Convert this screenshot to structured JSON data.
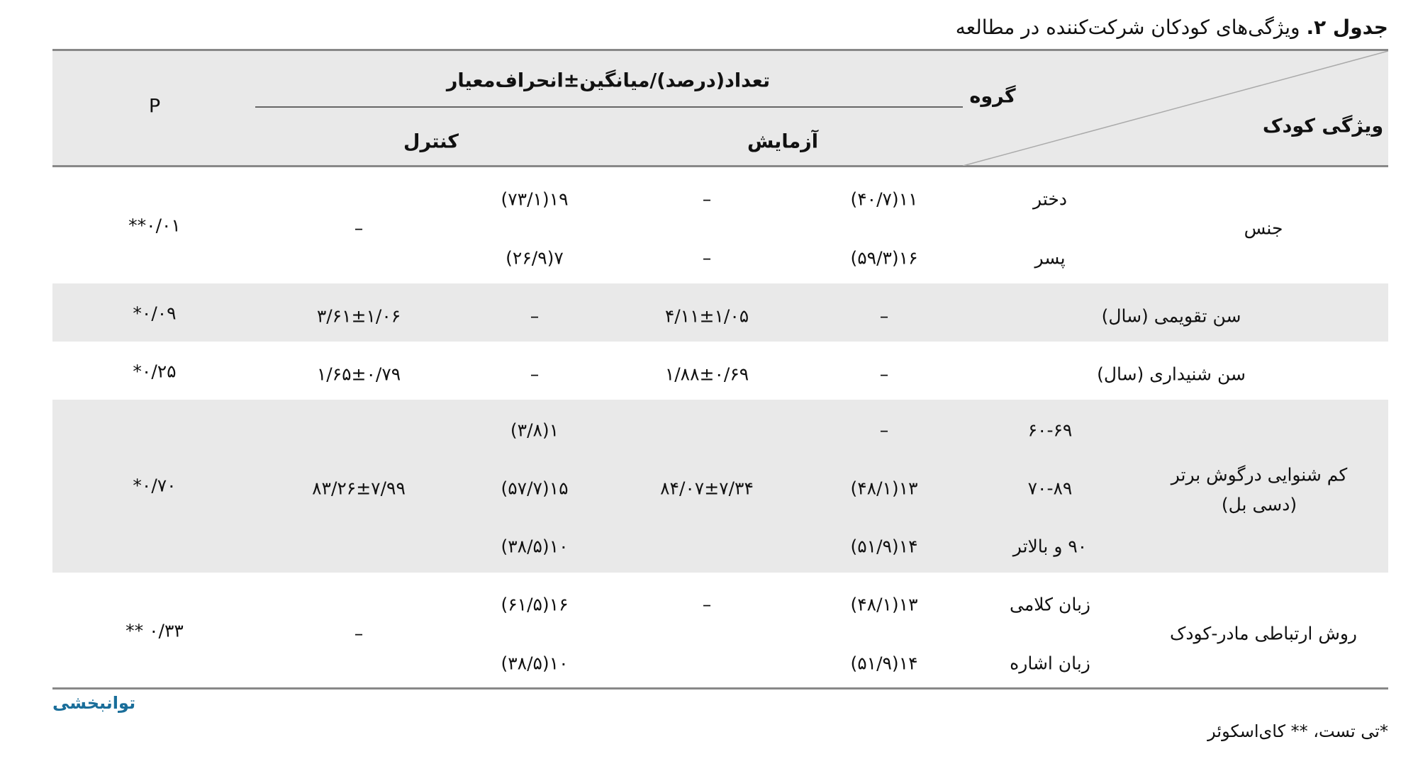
{
  "title": {
    "label": "جدول ۲.",
    "text": "ویژگی‌های کودکان شرکت‌کننده در مطالعه"
  },
  "header": {
    "child_feature": "ویژگی کودک",
    "group": "گروه",
    "stat": "تعداد(درصد)/میانگین±انحراف‌معیار",
    "experiment": "آزمایش",
    "control": "کنترل",
    "p": "P"
  },
  "rows": [
    {
      "category": "جنس",
      "p": "۰/۰۱**",
      "exp_mean": "–",
      "ctrl_mean": "–",
      "sub": [
        {
          "label": "دختر",
          "exp_n": "۱۱(۴۰/۷)",
          "exp_dash": "–",
          "ctrl_n": "۱۹(۷۳/۱)"
        },
        {
          "label": "پسر",
          "exp_n": "۱۶(۵۹/۳)",
          "exp_dash": "–",
          "ctrl_n": "۷(۲۶/۹)"
        }
      ]
    },
    {
      "category": "سن تقویمی (سال)",
      "p": "۰/۰۹*",
      "exp_n": "–",
      "exp_mean": "۴/۱۱±۱/۰۵",
      "ctrl_n": "–",
      "ctrl_mean": "۳/۶۱±۱/۰۶"
    },
    {
      "category": "سن شنیداری (سال)",
      "p": "۰/۲۵*",
      "exp_n": "–",
      "exp_mean": "۱/۸۸±۰/۶۹",
      "ctrl_n": "–",
      "ctrl_mean": "۱/۶۵±۰/۷۹"
    },
    {
      "category": "کم شنوایی درگوش برتر",
      "category2": "(دسی بل)",
      "p": "۰/۷۰*",
      "exp_mean": "۸۴/۰۷±۷/۳۴",
      "ctrl_mean": "۸۳/۲۶±۷/۹۹",
      "sub": [
        {
          "label": "۶۰-۶۹",
          "exp_n": "–",
          "ctrl_n": "۱(۳/۸)"
        },
        {
          "label": "۷۰-۸۹",
          "exp_n": "۱۳(۴۸/۱)",
          "ctrl_n": "۱۵(۵۷/۷)"
        },
        {
          "label": "۹۰ و بالاتر",
          "exp_n": "۱۴(۵۱/۹)",
          "ctrl_n": "۱۰(۳۸/۵)"
        }
      ]
    },
    {
      "category": "روش ارتباطی مادر-کودک",
      "p": "۰/۳۳ **",
      "exp_mean": "–",
      "ctrl_mean": "–",
      "sub": [
        {
          "label": "زبان کلامی",
          "exp_n": "۱۳(۴۸/۱)",
          "ctrl_n": "۱۶(۶۱/۵)"
        },
        {
          "label": "زبان اشاره",
          "exp_n": "۱۴(۵۱/۹)",
          "ctrl_n": "۱۰(۳۸/۵)"
        }
      ]
    }
  ],
  "logo": "توانبخشی",
  "footnote": "*تی تست، ** کای‌اسکوئر",
  "colors": {
    "header_bg": "#e9e9e9",
    "logo": "#1a6e9a"
  }
}
